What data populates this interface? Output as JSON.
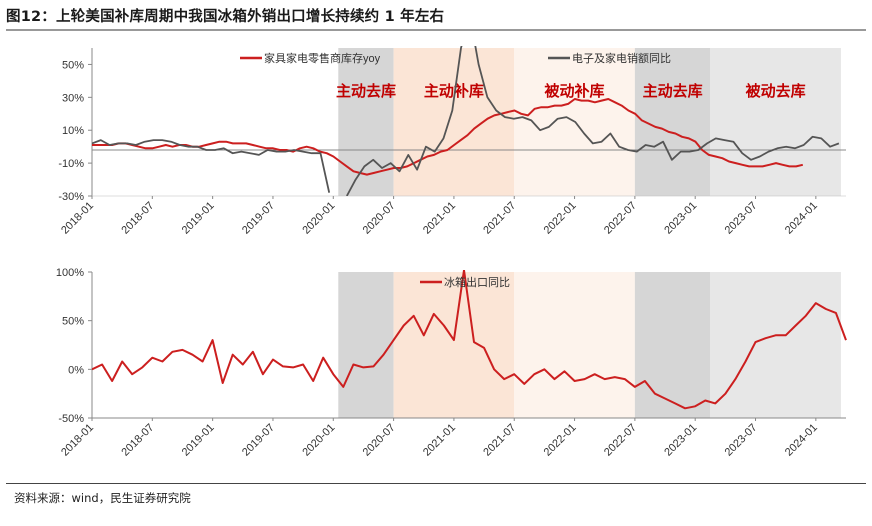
{
  "title": "图12：上轮美国补库周期中我国冰箱外销出口增长持续约 1 年左右",
  "source": "资料来源：wind，民生证券研究院",
  "colors": {
    "red": "#cc1f1f",
    "gray_line": "#555555",
    "shade_dark": "#d6d6d6",
    "shade_peach": "#fbe5d6",
    "shade_light_peach": "#fdf3ec",
    "shade_light_gray": "#e7e7e7",
    "phase_label": "#c00000"
  },
  "chart_data": [
    {
      "type": "line",
      "x_ticks": [
        "2018-01",
        "2018-07",
        "2019-01",
        "2019-07",
        "2020-01",
        "2020-07",
        "2021-01",
        "2021-07",
        "2022-01",
        "2022-07",
        "2023-01",
        "2023-07",
        "2024-01"
      ],
      "ylim": [
        -30,
        60
      ],
      "y_ticks": [
        {
          "value": 50,
          "label": "50%"
        },
        {
          "value": 30,
          "label": "30%"
        },
        {
          "value": 10,
          "label": "10%"
        },
        {
          "value": -10,
          "label": "-10%"
        },
        {
          "value": -30,
          "label": "-30%"
        }
      ],
      "phases": [
        {
          "start": 24.5,
          "end": 30,
          "label": "主动去库",
          "shade": "shade_dark"
        },
        {
          "start": 30,
          "end": 42,
          "label": "主动补库",
          "shade": "shade_peach"
        },
        {
          "start": 42,
          "end": 54,
          "label": "被动补库",
          "shade": "shade_light_peach"
        },
        {
          "start": 54,
          "end": 61.5,
          "label": "主动去库",
          "shade": "shade_dark"
        },
        {
          "start": 61.5,
          "end": 74.5,
          "label": "被动去库",
          "shade": "shade_light_gray"
        }
      ],
      "series": [
        {
          "name": "家具家电零售商库存yoy",
          "color": "red",
          "values": [
            1,
            1,
            1,
            1,
            2,
            2,
            1,
            0,
            -1,
            -1,
            0,
            1,
            0,
            1,
            1,
            0,
            0,
            1,
            2,
            3,
            3,
            2,
            2,
            2,
            1,
            0,
            -1,
            -1,
            -2,
            -2,
            -3,
            -1,
            0,
            -1,
            -3,
            -4,
            -6,
            -9,
            -12,
            -15,
            -16,
            -17,
            -16,
            -15,
            -14,
            -13,
            -13,
            -12,
            -10,
            -8,
            -6,
            -5,
            -3,
            -2,
            1,
            4,
            7,
            11,
            14,
            17,
            19,
            20,
            21,
            22,
            20,
            19,
            23,
            24,
            24,
            25,
            25,
            26,
            29,
            28,
            28,
            27,
            28,
            29,
            27,
            25,
            22,
            20,
            16,
            14,
            12,
            11,
            9,
            8,
            6,
            5,
            3,
            -2,
            -5,
            -6,
            -7,
            -9,
            -10,
            -11,
            -12,
            -12,
            -12,
            -11,
            -10,
            -11,
            -12,
            -12,
            -11
          ],
          "x_step": 0.667
        },
        {
          "name": "电子及家电销额同比",
          "color": "gray_line",
          "values": [
            2,
            4,
            1,
            2,
            2,
            1,
            3,
            4,
            4,
            3,
            1,
            0,
            0,
            -2,
            -2,
            -1,
            -4,
            -3,
            -4,
            -5,
            -2,
            -3,
            -3,
            -2,
            -3,
            -4,
            -4,
            -28,
            null,
            -30,
            -20,
            -12,
            -8,
            -13,
            -10,
            -15,
            -5,
            -14,
            0,
            -3,
            5,
            22,
            60,
            80,
            50,
            30,
            22,
            18,
            17,
            18,
            16,
            10,
            12,
            17,
            18,
            15,
            8,
            2,
            3,
            8,
            0,
            -2,
            -3,
            1,
            0,
            3,
            -8,
            -3,
            -3,
            -2,
            2,
            5,
            4,
            3,
            -4,
            -8,
            -6,
            -3,
            -1,
            0,
            -1,
            1,
            6,
            5,
            0,
            2
          ],
          "x_step": 0.874
        }
      ]
    },
    {
      "type": "line",
      "x_ticks": [
        "2018-01",
        "2018-07",
        "2019-01",
        "2019-07",
        "2020-01",
        "2020-07",
        "2021-01",
        "2021-07",
        "2022-01",
        "2022-07",
        "2023-01",
        "2023-07",
        "2024-01"
      ],
      "ylim": [
        -50,
        100
      ],
      "y_ticks": [
        {
          "value": 100,
          "label": "100%"
        },
        {
          "value": 50,
          "label": "50%"
        },
        {
          "value": 0,
          "label": "0%"
        },
        {
          "value": -50,
          "label": "-50%"
        }
      ],
      "phases": [
        {
          "start": 24.5,
          "end": 30,
          "shade": "shade_dark"
        },
        {
          "start": 30,
          "end": 42,
          "shade": "shade_peach"
        },
        {
          "start": 42,
          "end": 54,
          "shade": "shade_light_peach"
        },
        {
          "start": 54,
          "end": 61.5,
          "shade": "shade_dark"
        },
        {
          "start": 61.5,
          "end": 74.5,
          "shade": "shade_light_gray"
        }
      ],
      "series": [
        {
          "name": "冰箱出口同比",
          "color": "red",
          "values": [
            0,
            5,
            -12,
            8,
            -5,
            2,
            12,
            8,
            18,
            20,
            15,
            8,
            30,
            -14,
            15,
            5,
            18,
            -5,
            10,
            3,
            2,
            5,
            -12,
            12,
            -5,
            -18,
            5,
            2,
            3,
            15,
            30,
            45,
            55,
            35,
            57,
            45,
            30,
            102,
            28,
            22,
            0,
            -10,
            -5,
            -15,
            -5,
            0,
            -10,
            -2,
            -12,
            -10,
            -5,
            -10,
            -8,
            -10,
            -18,
            -12,
            -25,
            -30,
            -35,
            -40,
            -38,
            -32,
            -35,
            -25,
            -10,
            8,
            28,
            32,
            35,
            35,
            45,
            55,
            68,
            62,
            58,
            30
          ],
          "x_step": 1
        }
      ]
    }
  ]
}
